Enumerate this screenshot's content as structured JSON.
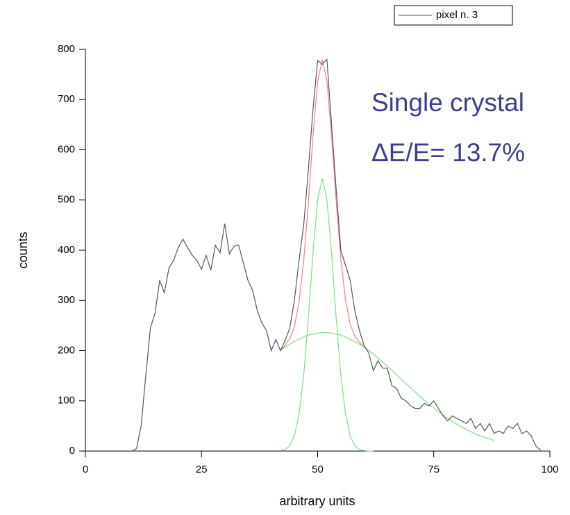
{
  "chart_data": {
    "type": "line",
    "xlabel": "arbitrary units",
    "ylabel": "counts",
    "annotations": [
      "Single crystal",
      "ΔE/E= 13.7%"
    ],
    "annotation_color": "#3b3f8c",
    "xlim": [
      0,
      100
    ],
    "xticks": [
      0,
      25,
      50,
      75,
      100
    ],
    "ylim": [
      0,
      800
    ],
    "yticks": [
      0,
      100,
      200,
      300,
      400,
      500,
      600,
      700,
      800
    ],
    "legend": "top-right",
    "series": [
      {
        "name": "pixel n. 3",
        "color": "#555555",
        "x": [
          10,
          11,
          12,
          13,
          14,
          15,
          16,
          17,
          18,
          19,
          20,
          21,
          22,
          23,
          24,
          25,
          26,
          27,
          28,
          29,
          30,
          31,
          32,
          33,
          34,
          35,
          36,
          37,
          38,
          39,
          40,
          41,
          42,
          43,
          44,
          45,
          46,
          47,
          48,
          49,
          50,
          51,
          52,
          53,
          54,
          55,
          56,
          57,
          58,
          59,
          60,
          61,
          62,
          63,
          64,
          65,
          66,
          67,
          68,
          69,
          70,
          71,
          72,
          73,
          74,
          75,
          76,
          77,
          78,
          79,
          80,
          81,
          82,
          83,
          84,
          85,
          86,
          87,
          88,
          89,
          90,
          91,
          92,
          93,
          94,
          95,
          96,
          97,
          98
        ],
        "values": [
          0,
          5,
          50,
          150,
          245,
          275,
          340,
          315,
          365,
          380,
          405,
          422,
          405,
          390,
          380,
          362,
          390,
          360,
          410,
          395,
          453,
          393,
          408,
          410,
          375,
          340,
          320,
          280,
          255,
          240,
          200,
          222,
          200,
          220,
          245,
          300,
          380,
          450,
          560,
          680,
          778,
          770,
          780,
          650,
          520,
          400,
          370,
          340,
          280,
          240,
          210,
          195,
          160,
          180,
          165,
          165,
          130,
          125,
          105,
          100,
          90,
          85,
          85,
          95,
          90,
          100,
          85,
          70,
          60,
          70,
          65,
          60,
          55,
          65,
          45,
          55,
          40,
          55,
          35,
          40,
          35,
          50,
          45,
          55,
          35,
          40,
          30,
          10,
          2
        ]
      },
      {
        "color": "#7be07b",
        "x": [
          42,
          43,
          44,
          45,
          46,
          47,
          48,
          49,
          50,
          51,
          52,
          53,
          54,
          55,
          56,
          57,
          58,
          59,
          60,
          62,
          64,
          66,
          68,
          70,
          72,
          74,
          76,
          78,
          80,
          82,
          84,
          86,
          88
        ],
        "values": [
          200,
          207,
          213,
          218,
          223,
          227,
          231,
          233,
          235,
          236,
          236,
          235,
          233,
          231,
          227,
          223,
          218,
          213,
          207,
          193,
          177,
          161,
          143,
          126,
          109,
          93,
          79,
          65,
          53,
          43,
          34,
          27,
          21
        ]
      },
      {
        "color": "#7be07b",
        "x": [
          42,
          43,
          44,
          45,
          46,
          47,
          48,
          49,
          50,
          51,
          52,
          53,
          54,
          55,
          56,
          57,
          58,
          59,
          60,
          61,
          62
        ],
        "values": [
          1,
          3,
          11,
          30,
          74,
          151,
          264,
          394,
          501,
          543,
          501,
          394,
          264,
          151,
          74,
          30,
          11,
          3,
          1,
          0,
          0
        ]
      },
      {
        "color": "#f08080",
        "x": [
          42,
          43,
          44,
          45,
          46,
          47,
          48,
          49,
          50,
          51,
          52,
          53,
          54,
          55,
          56,
          57,
          58,
          59,
          60,
          61,
          62
        ],
        "values": [
          201,
          210,
          224,
          248,
          297,
          378,
          495,
          627,
          736,
          779,
          737,
          629,
          497,
          382,
          301,
          253,
          229,
          216,
          208,
          200,
          193
        ]
      }
    ]
  }
}
